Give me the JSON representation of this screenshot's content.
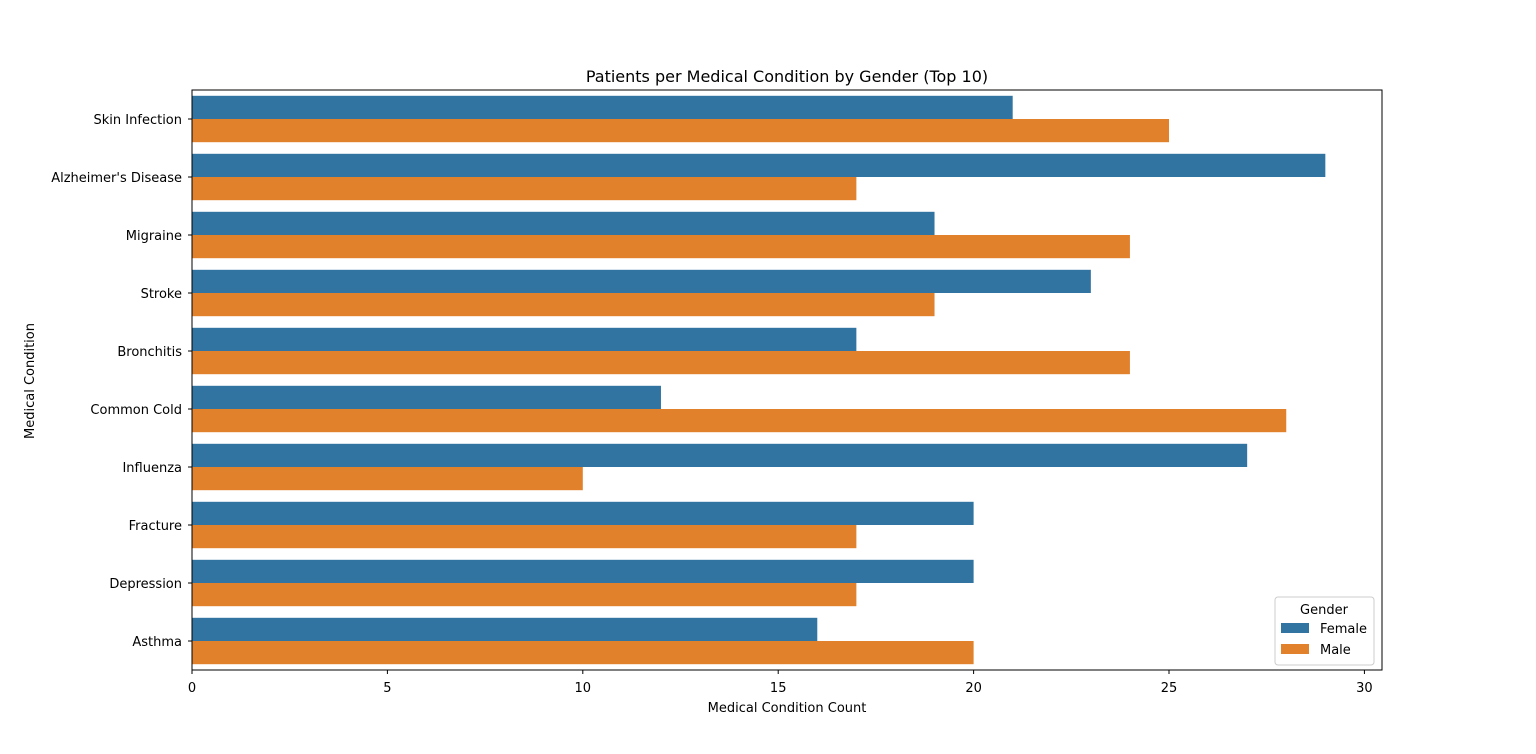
{
  "chart_data": {
    "type": "bar",
    "orientation": "horizontal",
    "title": "Patients per Medical Condition by Gender (Top 10)",
    "xlabel": "Medical Condition Count",
    "ylabel": "Medical Condition",
    "categories": [
      "Skin Infection",
      "Alzheimer's Disease",
      "Migraine",
      "Stroke",
      "Bronchitis",
      "Common Cold",
      "Influenza",
      "Fracture",
      "Depression",
      "Asthma"
    ],
    "series": [
      {
        "name": "Female",
        "color": "#3274a1",
        "values": [
          21,
          29,
          19,
          23,
          17,
          12,
          27,
          20,
          20,
          16
        ]
      },
      {
        "name": "Male",
        "color": "#e1812c",
        "values": [
          25,
          17,
          24,
          19,
          24,
          28,
          10,
          17,
          17,
          20
        ]
      }
    ],
    "xlim": [
      0,
      30.45
    ],
    "xticks": [
      0,
      5,
      10,
      15,
      20,
      25,
      30
    ],
    "grid": false,
    "legend": {
      "title": "Gender",
      "placement": "lower-right"
    }
  }
}
